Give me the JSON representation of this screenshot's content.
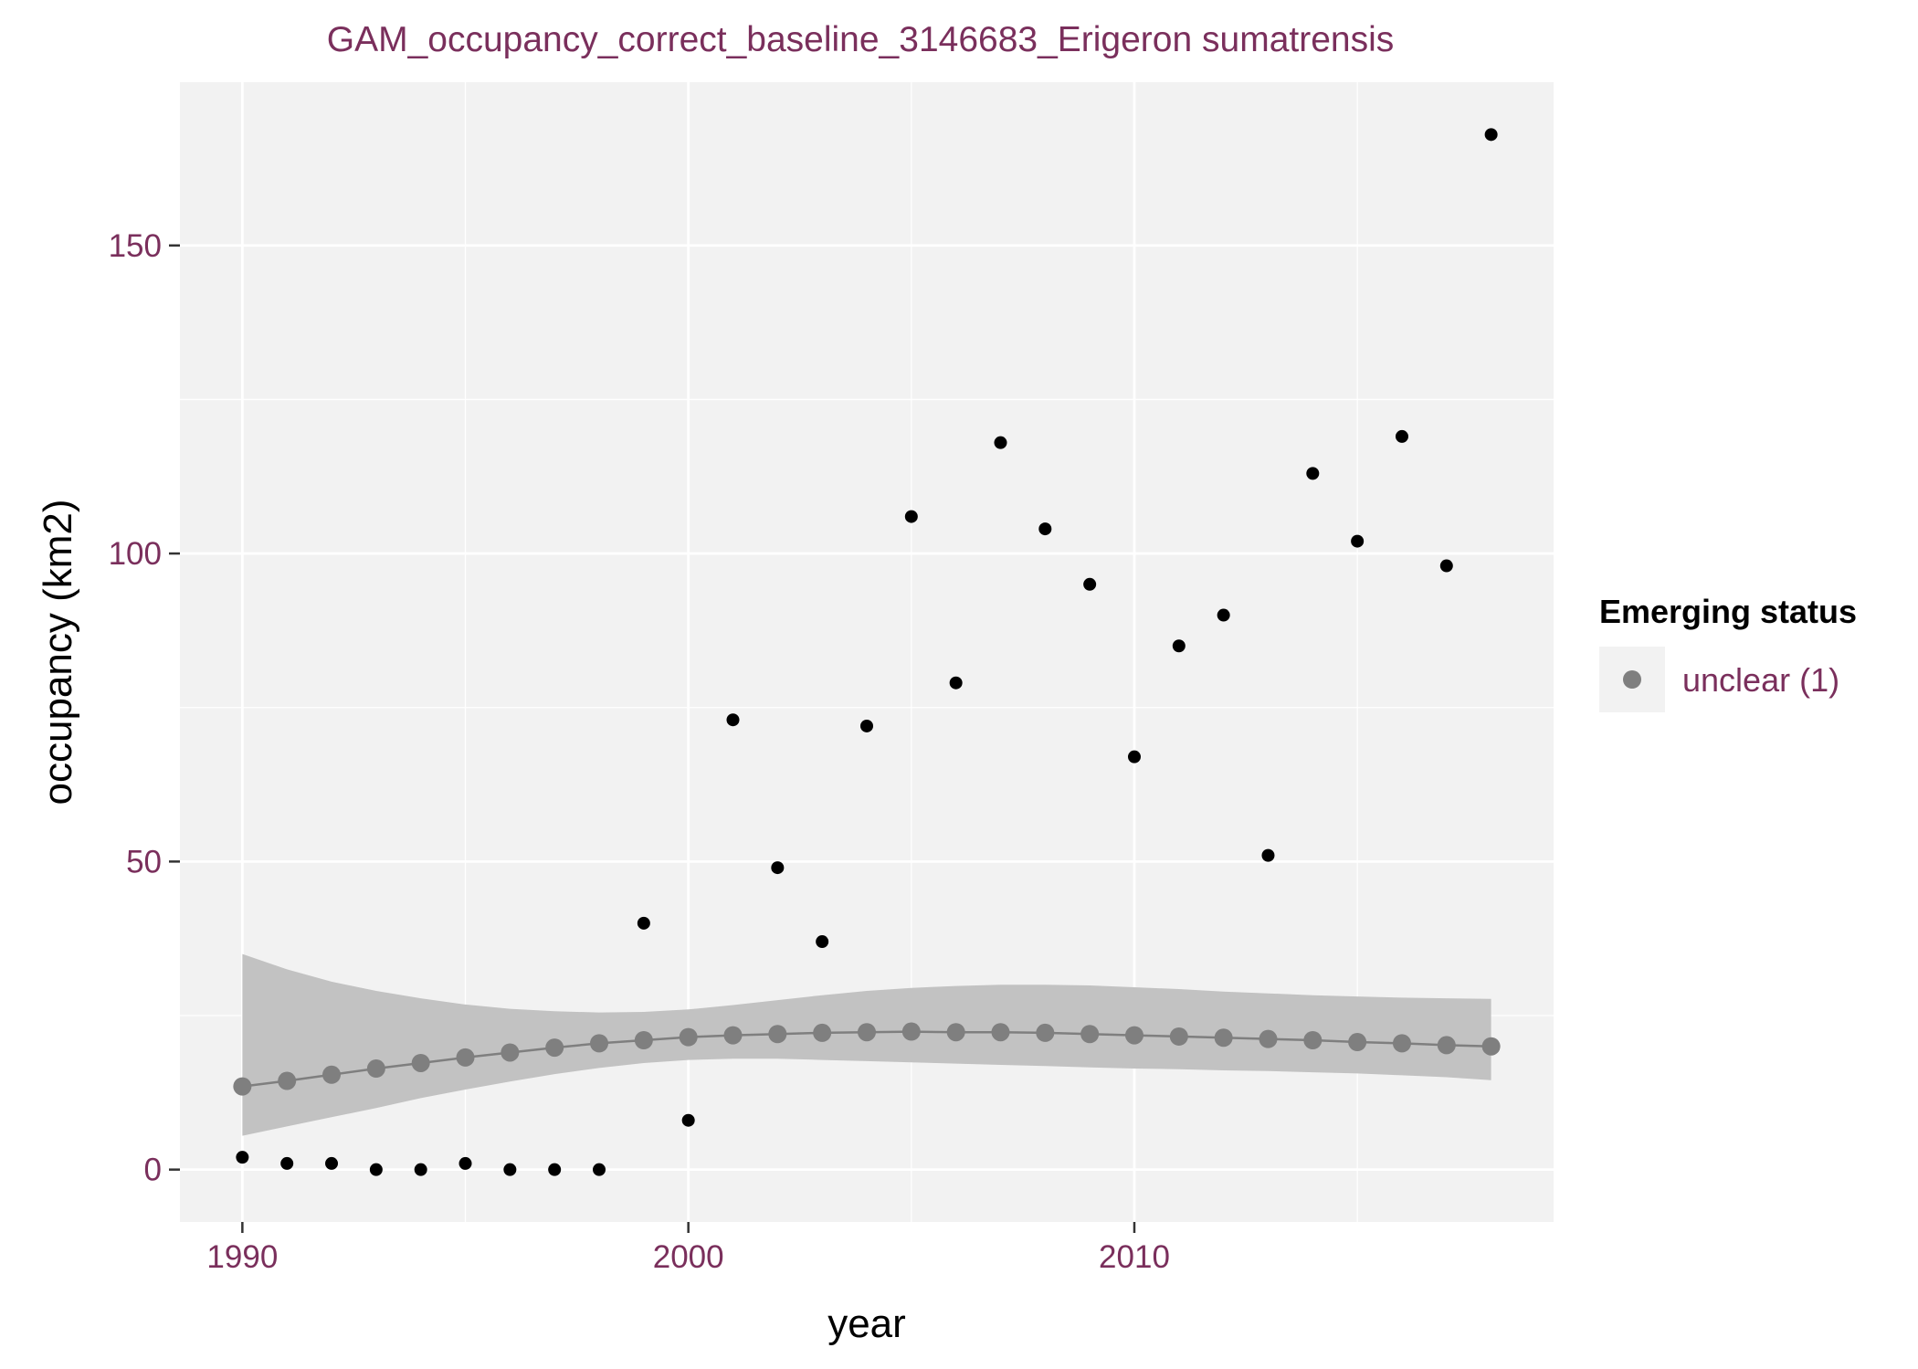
{
  "chart_data": {
    "type": "scatter",
    "title": "GAM_occupancy_correct_baseline_3146683_Erigeron sumatrensis",
    "xlabel": "year",
    "ylabel": "occupancy (km2)",
    "xlim": [
      1988.6,
      2019.4
    ],
    "ylim": [
      -8.5,
      176.5
    ],
    "x_ticks": [
      1990,
      2000,
      2010
    ],
    "x_tick_labels": [
      "1990",
      "2000",
      "2010"
    ],
    "x_minor": [
      1995,
      2005,
      2015
    ],
    "y_ticks": [
      0,
      50,
      100,
      150
    ],
    "y_tick_labels": [
      "0",
      "50",
      "100",
      "150"
    ],
    "y_minor": [
      25,
      75,
      125
    ],
    "grid": true,
    "observed": {
      "x": [
        1990,
        1991,
        1992,
        1993,
        1994,
        1995,
        1996,
        1997,
        1998,
        1999,
        2000,
        2001,
        2002,
        2003,
        2004,
        2005,
        2006,
        2007,
        2008,
        2009,
        2010,
        2011,
        2012,
        2013,
        2014,
        2015,
        2016,
        2017,
        2018
      ],
      "y": [
        2,
        1,
        1,
        0,
        0,
        1,
        0,
        0,
        0,
        40,
        8,
        73,
        49,
        37,
        72,
        106,
        79,
        118,
        104,
        95,
        67,
        85,
        90,
        51,
        113,
        102,
        119,
        98,
        168
      ]
    },
    "fit": {
      "x": [
        1990,
        1991,
        1992,
        1993,
        1994,
        1995,
        1996,
        1997,
        1998,
        1999,
        2000,
        2001,
        2002,
        2003,
        2004,
        2005,
        2006,
        2007,
        2008,
        2009,
        2010,
        2011,
        2012,
        2013,
        2014,
        2015,
        2016,
        2017,
        2018
      ],
      "y": [
        13.5,
        14.4,
        15.4,
        16.4,
        17.3,
        18.2,
        19.0,
        19.8,
        20.5,
        21.0,
        21.5,
        21.8,
        22.0,
        22.2,
        22.3,
        22.4,
        22.3,
        22.3,
        22.2,
        22.0,
        21.8,
        21.6,
        21.4,
        21.2,
        21.0,
        20.7,
        20.5,
        20.2,
        20.0
      ],
      "lower": [
        5.5,
        7.0,
        8.5,
        10.0,
        11.6,
        13.0,
        14.3,
        15.5,
        16.5,
        17.3,
        17.8,
        18.0,
        18.0,
        17.8,
        17.6,
        17.4,
        17.2,
        17.0,
        16.8,
        16.6,
        16.4,
        16.3,
        16.1,
        16.0,
        15.8,
        15.6,
        15.3,
        15.0,
        14.5
      ],
      "upper": [
        35.0,
        32.5,
        30.5,
        29.0,
        27.8,
        26.8,
        26.1,
        25.7,
        25.5,
        25.6,
        26.0,
        26.7,
        27.5,
        28.3,
        29.0,
        29.5,
        29.8,
        30.0,
        30.0,
        29.9,
        29.6,
        29.3,
        28.9,
        28.6,
        28.3,
        28.1,
        27.9,
        27.8,
        27.7
      ]
    },
    "colors": {
      "panel": "#f2f2f2",
      "grid": "#ffffff",
      "observed_point": "#000000",
      "fit_point": "#7f7f7f",
      "ribbon": "#c2c2c2",
      "tick_text": "#7a2f5c"
    },
    "legend": {
      "title": "Emerging status",
      "placement": "right",
      "entries": [
        {
          "label": "unclear (1)"
        }
      ]
    }
  }
}
